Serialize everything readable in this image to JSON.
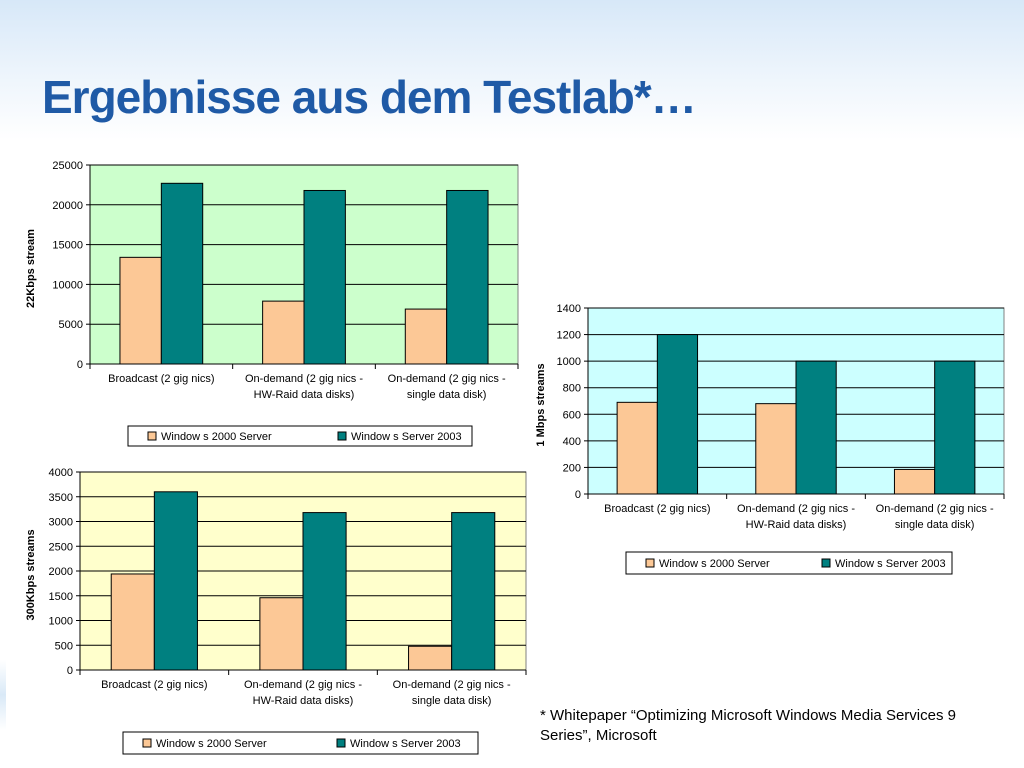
{
  "slide": {
    "title": "Ergebnisse aus dem Testlab*…",
    "footnote": "* Whitepaper “Optimizing Microsoft Windows Media Services 9 Series”, Microsoft"
  },
  "colors": {
    "title": "#1f5aa6",
    "series_2000": "#fcc896",
    "series_2003": "#008080",
    "chart1_bg": "#ccffcc",
    "chart2_bg": "#ccffff",
    "chart3_bg": "#ffffcc"
  },
  "chart_data": [
    {
      "type": "bar",
      "ylabel": "22Kbps stream",
      "categories": [
        [
          "Broadcast (2 gig nics)"
        ],
        [
          "On-demand (2 gig nics -",
          "HW-Raid data disks)"
        ],
        [
          "On-demand (2 gig nics -",
          "single data disk)"
        ]
      ],
      "series": [
        {
          "name": "Window s 2000 Server",
          "values": [
            13400,
            7900,
            6900
          ]
        },
        {
          "name": "Window s Server 2003",
          "values": [
            22700,
            21800,
            21800
          ]
        }
      ],
      "ylim": [
        0,
        25000
      ],
      "yticks": [
        0,
        5000,
        10000,
        15000,
        20000,
        25000
      ],
      "grid": true,
      "legend": "bottom"
    },
    {
      "type": "bar",
      "ylabel": "1 Mbps streams",
      "categories": [
        [
          "Broadcast (2 gig nics)"
        ],
        [
          "On-demand (2 gig nics -",
          "HW-Raid data disks)"
        ],
        [
          "On-demand (2 gig nics -",
          "single data disk)"
        ]
      ],
      "series": [
        {
          "name": "Window s 2000 Server",
          "values": [
            690,
            680,
            185
          ]
        },
        {
          "name": "Window s Server 2003",
          "values": [
            1200,
            1000,
            1000
          ]
        }
      ],
      "ylim": [
        0,
        1400
      ],
      "yticks": [
        0,
        200,
        400,
        600,
        800,
        1000,
        1200,
        1400
      ],
      "grid": true,
      "legend": "bottom"
    },
    {
      "type": "bar",
      "ylabel": "300Kbps streams",
      "categories": [
        [
          "Broadcast (2 gig nics)"
        ],
        [
          "On-demand (2 gig nics -",
          "HW-Raid data disks)"
        ],
        [
          "On-demand (2 gig nics -",
          "single data disk)"
        ]
      ],
      "series": [
        {
          "name": "Window s 2000 Server",
          "values": [
            1940,
            1460,
            480
          ]
        },
        {
          "name": "Window s Server 2003",
          "values": [
            3600,
            3180,
            3180
          ]
        }
      ],
      "ylim": [
        0,
        4000
      ],
      "yticks": [
        0,
        500,
        1000,
        1500,
        2000,
        2500,
        3000,
        3500,
        4000
      ],
      "grid": true,
      "legend": "bottom"
    }
  ]
}
